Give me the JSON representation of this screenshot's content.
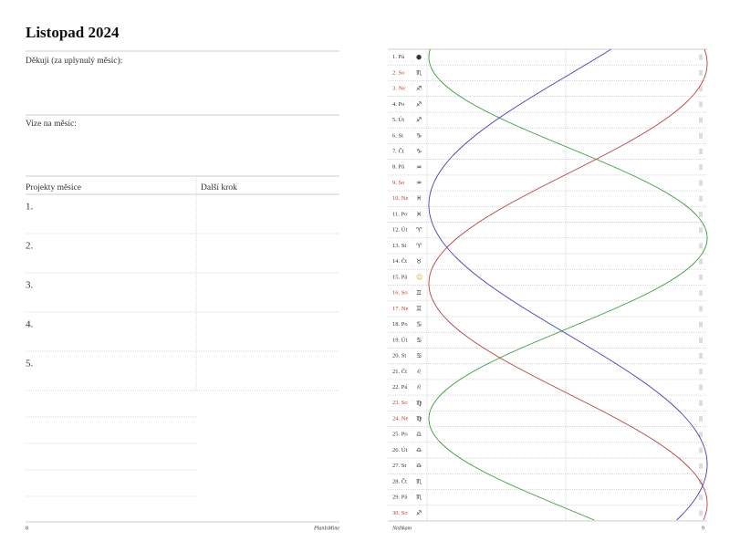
{
  "left_page": {
    "title": "Listopad 2024",
    "sections": [
      "Děkuji (za uplynulý měsíc):",
      "Vize na měsíc:"
    ],
    "table": {
      "headers": [
        "Projekty měsíce",
        "Další krok"
      ],
      "rows": [
        "1.",
        "2.",
        "3.",
        "4.",
        "5."
      ]
    },
    "footer": {
      "page_number": "8",
      "brand": "PlanIsMine"
    }
  },
  "right_page": {
    "days": [
      {
        "label": "1. Pá",
        "symbol": "●",
        "weekend": false
      },
      {
        "label": "2. So",
        "symbol": "♏",
        "weekend": true
      },
      {
        "label": "3. Ne",
        "symbol": "♐",
        "weekend": true
      },
      {
        "label": "4. Po",
        "symbol": "♐",
        "weekend": false
      },
      {
        "label": "5. Út",
        "symbol": "♐",
        "weekend": false
      },
      {
        "label": "6. St",
        "symbol": "♑",
        "weekend": false
      },
      {
        "label": "7. Čt",
        "symbol": "♑",
        "weekend": false
      },
      {
        "label": "8. Pá",
        "symbol": "♒",
        "weekend": false
      },
      {
        "label": "9. So",
        "symbol": "♒",
        "weekend": true
      },
      {
        "label": "10. Ne",
        "symbol": "♓",
        "weekend": true
      },
      {
        "label": "11. Po",
        "symbol": "♓",
        "weekend": false
      },
      {
        "label": "12. Út",
        "symbol": "♈",
        "weekend": false
      },
      {
        "label": "13. St",
        "symbol": "♈",
        "weekend": false
      },
      {
        "label": "14. Čt",
        "symbol": "♉",
        "weekend": false
      },
      {
        "label": "15. Pá",
        "symbol": "☺",
        "weekend": false
      },
      {
        "label": "16. So",
        "symbol": "♊",
        "weekend": true
      },
      {
        "label": "17. Ne",
        "symbol": "♊",
        "weekend": true
      },
      {
        "label": "18. Po",
        "symbol": "♋",
        "weekend": false
      },
      {
        "label": "19. Út",
        "symbol": "♋",
        "weekend": false
      },
      {
        "label": "20. St",
        "symbol": "♋",
        "weekend": false
      },
      {
        "label": "21. Čt",
        "symbol": "♌",
        "weekend": false
      },
      {
        "label": "22. Pá",
        "symbol": "♌",
        "weekend": false
      },
      {
        "label": "23. So",
        "symbol": "♍",
        "weekend": true
      },
      {
        "label": "24. Ne",
        "symbol": "♍",
        "weekend": true
      },
      {
        "label": "25. Po",
        "symbol": "♎",
        "weekend": false
      },
      {
        "label": "26. Út",
        "symbol": "♎",
        "weekend": false
      },
      {
        "label": "27. St",
        "symbol": "♎",
        "weekend": false
      },
      {
        "label": "28. Čt",
        "symbol": "♏",
        "weekend": false
      },
      {
        "label": "29. Pá",
        "symbol": "♏",
        "weekend": false
      },
      {
        "label": "30. So",
        "symbol": "♐",
        "weekend": true
      }
    ],
    "footer": {
      "name": "Nishkam",
      "page_number": "9"
    }
  }
}
